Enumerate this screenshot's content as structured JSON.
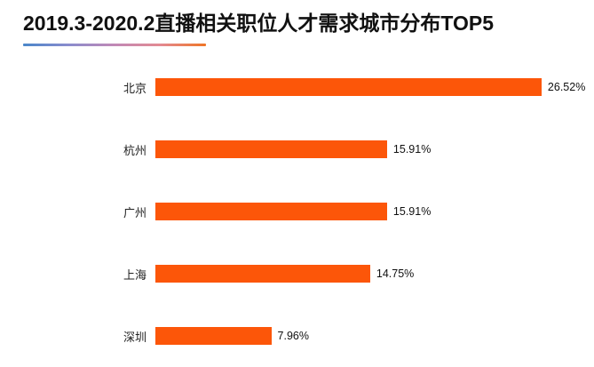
{
  "page": {
    "background": "#ffffff"
  },
  "header": {
    "underline_gradient_stops": [
      "#4a87ca",
      "#8a8ccd",
      "#c189b6",
      "#e38a92",
      "#ef7526"
    ]
  },
  "chart_data": {
    "type": "bar",
    "orientation": "horizontal",
    "title": "2019.3-2020.2直播相关职位人才需求城市分布TOP5",
    "categories": [
      "北京",
      "杭州",
      "广州",
      "上海",
      "深圳"
    ],
    "values": [
      26.52,
      15.91,
      15.91,
      14.75,
      7.96
    ],
    "value_labels": [
      "26.52%",
      "15.91%",
      "15.91%",
      "14.75%",
      "7.96%"
    ],
    "unit": "%",
    "xlim": [
      0,
      29.6
    ],
    "bar_color": "#fc5609",
    "grid": false,
    "axes_hidden": true,
    "value_label_position": "right-of-bar"
  }
}
